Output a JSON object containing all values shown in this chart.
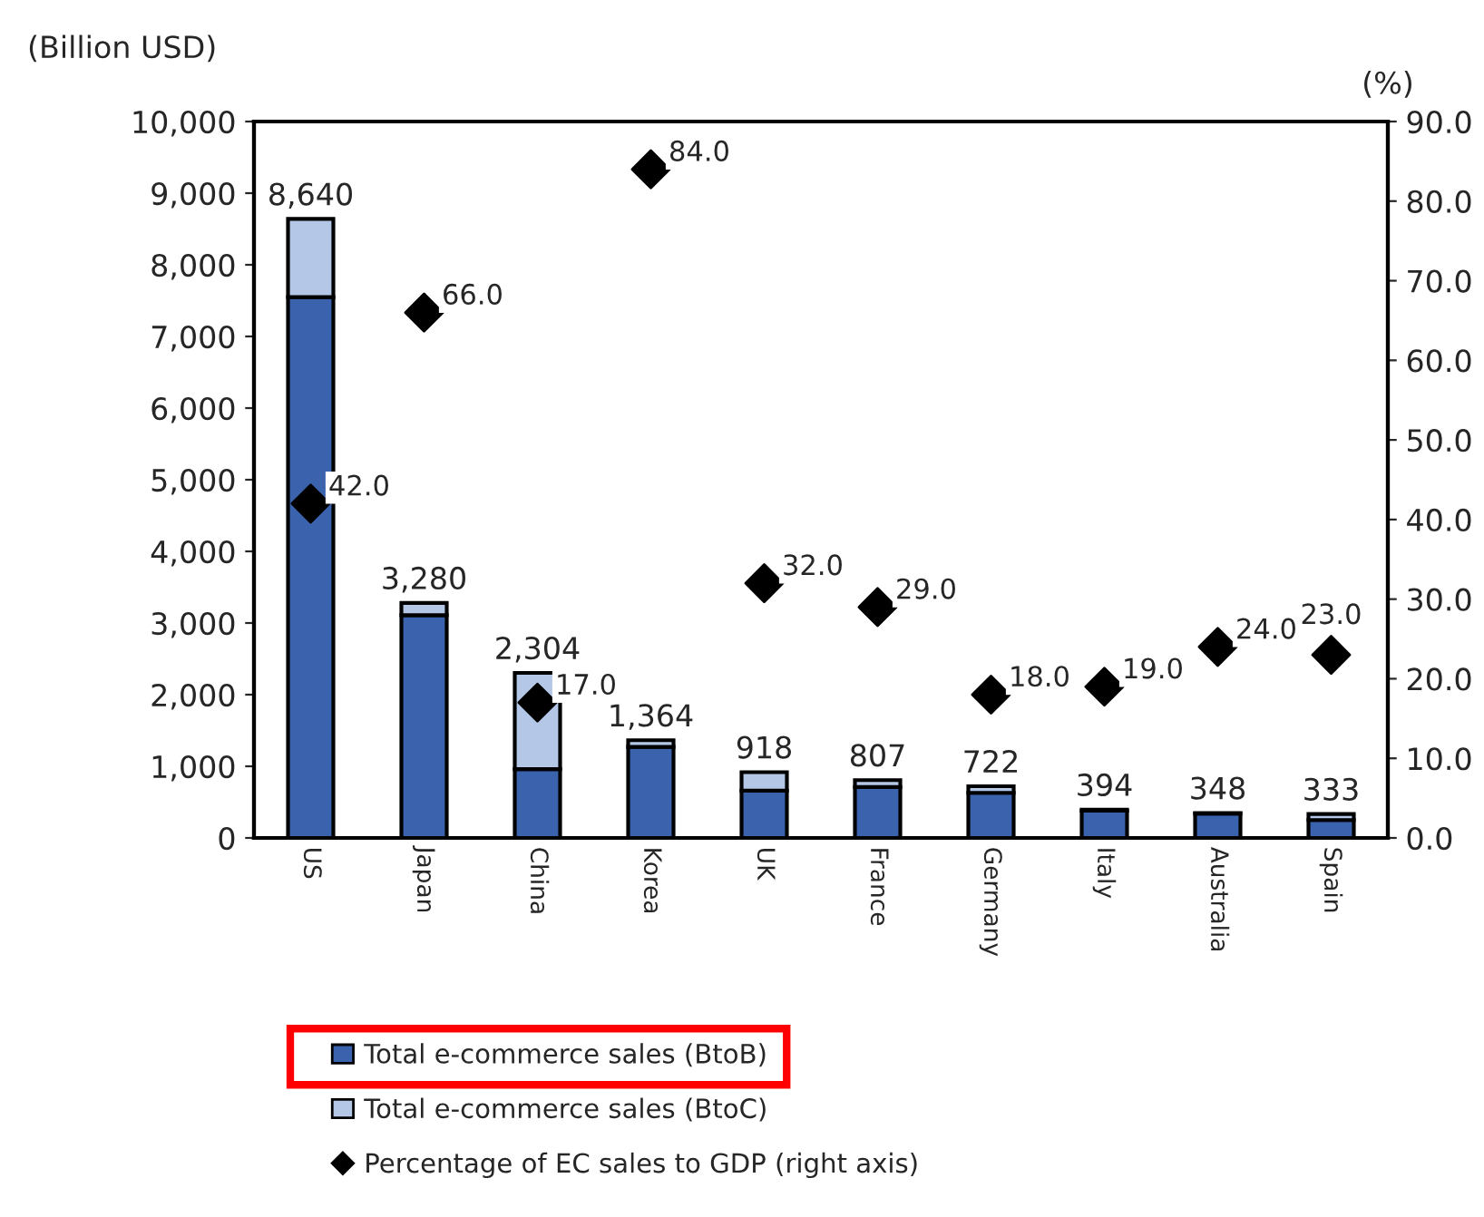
{
  "chart_data": {
    "type": "bar",
    "stacked": true,
    "ylabel": "(Billion USD)",
    "y2label": "(%)",
    "categories": [
      "US",
      "Japan",
      "China",
      "Korea",
      "UK",
      "France",
      "Germany",
      "Italy",
      "Australia",
      "Spain"
    ],
    "series": [
      {
        "name": "Total e-commerce sales (BtoB)",
        "color": "#3a62ad",
        "values": [
          7550,
          3110,
          960,
          1270,
          660,
          710,
          630,
          380,
          340,
          250
        ]
      },
      {
        "name": "Total e-commerce sales (BtoC)",
        "color": "#b4c7e7",
        "values": [
          1090,
          170,
          1344,
          94,
          258,
          97,
          92,
          14,
          8,
          83
        ]
      },
      {
        "name": "Percentage of EC sales to GDP (right axis)",
        "type": "scatter",
        "axis": "y2",
        "color": "#000000",
        "marker": "diamond",
        "values": [
          42.0,
          66.0,
          17.0,
          84.0,
          32.0,
          29.0,
          18.0,
          19.0,
          24.0,
          23.0
        ],
        "value_labels": [
          "42.0",
          "66.0",
          "17.0",
          "84.0",
          "32.0",
          "29.0",
          "18.0",
          "19.0",
          "24.0",
          "23.0"
        ]
      }
    ],
    "totals": [
      "8,640",
      "3,280",
      "2,304",
      "1,364",
      "918",
      "807",
      "722",
      "394",
      "348",
      "333"
    ],
    "ylim": [
      0,
      10000
    ],
    "yticks": [
      {
        "value": 0,
        "label": "0"
      },
      {
        "value": 1000,
        "label": "1,000"
      },
      {
        "value": 2000,
        "label": "2,000"
      },
      {
        "value": 3000,
        "label": "3,000"
      },
      {
        "value": 4000,
        "label": "4,000"
      },
      {
        "value": 5000,
        "label": "5,000"
      },
      {
        "value": 6000,
        "label": "6,000"
      },
      {
        "value": 7000,
        "label": "7,000"
      },
      {
        "value": 8000,
        "label": "8,000"
      },
      {
        "value": 9000,
        "label": "9,000"
      },
      {
        "value": 10000,
        "label": "10,000"
      }
    ],
    "y2lim": [
      0,
      90
    ],
    "y2ticks": [
      {
        "value": 0,
        "label": "0.0"
      },
      {
        "value": 10,
        "label": "10.0"
      },
      {
        "value": 20,
        "label": "20.0"
      },
      {
        "value": 30,
        "label": "30.0"
      },
      {
        "value": 40,
        "label": "40.0"
      },
      {
        "value": 50,
        "label": "50.0"
      },
      {
        "value": 60,
        "label": "60.0"
      },
      {
        "value": 70,
        "label": "70.0"
      },
      {
        "value": 80,
        "label": "80.0"
      },
      {
        "value": 90,
        "label": "90.0"
      }
    ],
    "grid": false,
    "legend": "bottom"
  }
}
